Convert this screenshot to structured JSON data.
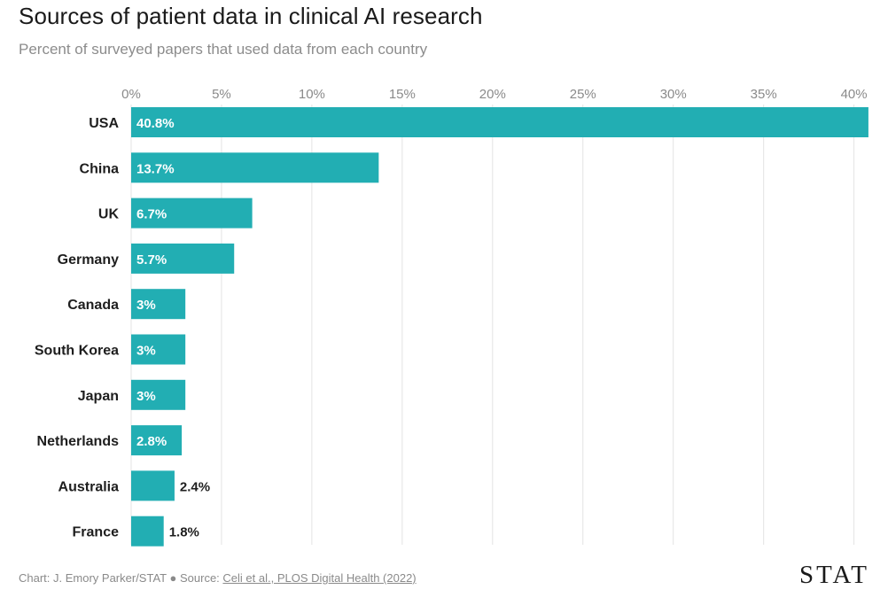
{
  "header": {
    "title": "Sources of patient data in clinical AI research",
    "subtitle": "Percent of surveyed papers that used data from each country"
  },
  "chart_data": {
    "type": "bar",
    "orientation": "horizontal",
    "title": "Sources of patient data in clinical AI research",
    "subtitle": "Percent of surveyed papers that used data from each country",
    "xlabel": "",
    "ylabel": "",
    "xlim": [
      0,
      41
    ],
    "ticks": [
      0,
      5,
      10,
      15,
      20,
      25,
      30,
      35,
      40
    ],
    "tick_labels": [
      "0%",
      "5%",
      "10%",
      "15%",
      "20%",
      "25%",
      "30%",
      "35%",
      "40%"
    ],
    "grid": true,
    "bar_color": "#22aeb3",
    "categories": [
      "USA",
      "China",
      "UK",
      "Germany",
      "Canada",
      "South Korea",
      "Japan",
      "Netherlands",
      "Australia",
      "France"
    ],
    "values": [
      40.8,
      13.7,
      6.7,
      5.7,
      3,
      3,
      3,
      2.8,
      2.4,
      1.8
    ],
    "value_labels": [
      "40.8%",
      "13.7%",
      "6.7%",
      "5.7%",
      "3%",
      "3%",
      "3%",
      "2.8%",
      "2.4%",
      "1.8%"
    ]
  },
  "footer": {
    "credit": "Chart: J. Emory Parker/STAT",
    "separator": "●",
    "source_prefix": "Source:",
    "source_link": "Celi et al., PLOS Digital Health (2022)"
  },
  "brand": {
    "logo_text": "STAT"
  }
}
